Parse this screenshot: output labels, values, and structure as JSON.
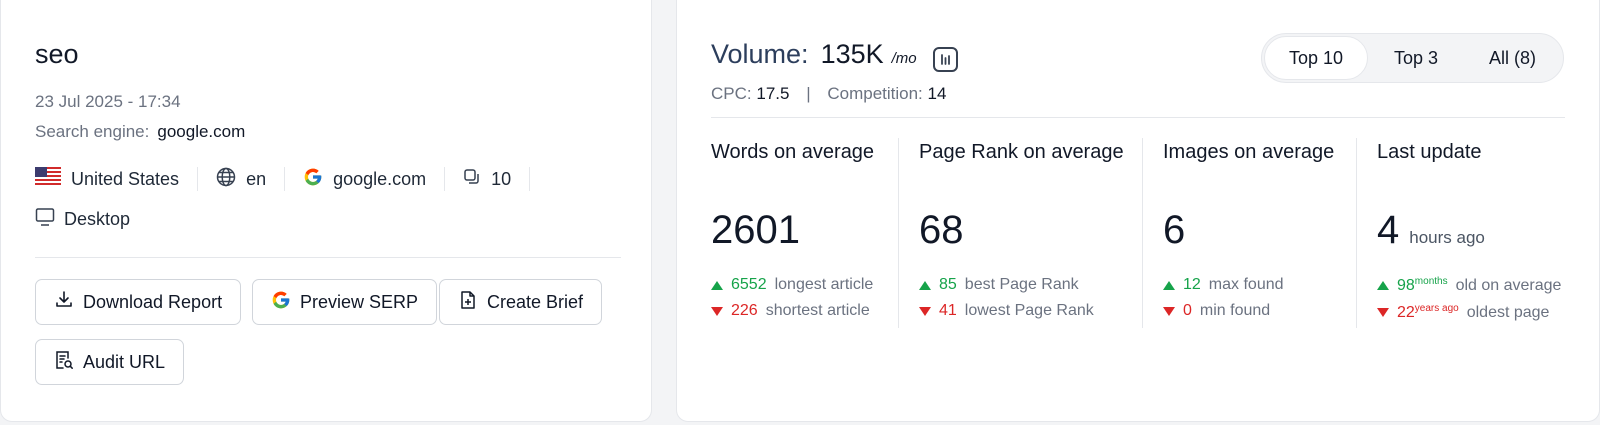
{
  "left": {
    "title": "seo",
    "date": "23 Jul 2025 - 17:34",
    "engine_label": "Search engine:",
    "engine_value": "google.com",
    "country": "United States",
    "language": "en",
    "domain": "google.com",
    "results": "10",
    "device": "Desktop",
    "buttons": {
      "download": "Download Report",
      "preview": "Preview SERP",
      "brief": "Create Brief",
      "audit": "Audit URL"
    }
  },
  "right": {
    "volume_label": "Volume:",
    "volume_value": "135K",
    "volume_unit": "/mo",
    "cpc_label": "CPC:",
    "cpc_value": "17.5",
    "separator": "|",
    "competition_label": "Competition:",
    "competition_value": "14",
    "tabs": [
      "Top 10",
      "Top 3",
      "All (8)"
    ],
    "stats": {
      "words": {
        "heading": "Words on average",
        "value": "2601",
        "up_value": "6552",
        "up_label": "longest article",
        "down_value": "226",
        "down_label": "shortest article"
      },
      "rank": {
        "heading": "Page Rank on average",
        "value": "68",
        "up_value": "85",
        "up_label": "best Page Rank",
        "down_value": "41",
        "down_label": "lowest Page Rank"
      },
      "images": {
        "heading": "Images on average",
        "value": "6",
        "up_value": "12",
        "up_label": "max found",
        "down_value": "0",
        "down_label": "min found"
      },
      "update": {
        "heading": "Last update",
        "value": "4",
        "value_suffix": "hours ago",
        "up_value": "98",
        "up_sup": "months",
        "up_label": "old on average",
        "down_value": "22",
        "down_sup": "years ago",
        "down_label": "oldest page"
      }
    }
  },
  "colors": {
    "up": "#16a34a",
    "down": "#dc2626",
    "text": "#111827",
    "muted": "#6b7280"
  }
}
